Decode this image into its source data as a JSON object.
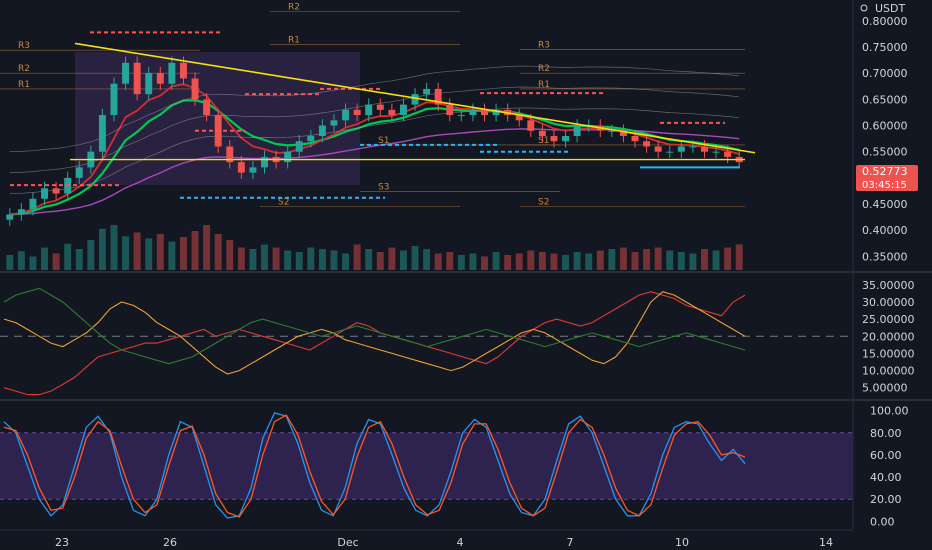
{
  "chart_data": [
    {
      "type": "candlestick",
      "pane": "price",
      "unit_label": "USDT",
      "y_ticks": [
        "0.80000",
        "0.75000",
        "0.70000",
        "0.65000",
        "0.60000",
        "0.55000",
        "0.50000",
        "0.45000",
        "0.40000",
        "0.35000"
      ],
      "ylim": [
        0.32,
        0.84
      ],
      "x_tick_labels": [
        "23",
        "26",
        "Dec",
        "4",
        "7",
        "10",
        "14"
      ],
      "current_price": "0.52773",
      "countdown": "03:45:15",
      "colors": {
        "up": "#26a69a",
        "down": "#ef5350",
        "trendline": "#f5e10b",
        "ema_fast": "#00c853",
        "ema_mid": "#d32f2f",
        "ma_slow": "#ab47bc",
        "support": "#29b6f6",
        "resistance": "#ff5252",
        "pivot": "#c8863a"
      },
      "pivot_labels": [
        "R2",
        "R1",
        "R3",
        "R2",
        "R1",
        "S1",
        "S2",
        "S3",
        "R3",
        "R2",
        "R1",
        "S1",
        "S2"
      ],
      "trendline": {
        "start": [
          0.0,
          0.757
        ],
        "end": [
          1.0,
          0.548
        ]
      },
      "horizontal_support": 0.535,
      "close": [
        0.43,
        0.44,
        0.46,
        0.48,
        0.47,
        0.5,
        0.52,
        0.55,
        0.62,
        0.68,
        0.72,
        0.66,
        0.7,
        0.68,
        0.72,
        0.69,
        0.65,
        0.62,
        0.56,
        0.53,
        0.51,
        0.52,
        0.54,
        0.53,
        0.55,
        0.57,
        0.58,
        0.6,
        0.61,
        0.63,
        0.62,
        0.64,
        0.63,
        0.62,
        0.64,
        0.66,
        0.67,
        0.64,
        0.62,
        0.62,
        0.63,
        0.62,
        0.63,
        0.62,
        0.61,
        0.59,
        0.58,
        0.57,
        0.58,
        0.6,
        0.6,
        0.59,
        0.59,
        0.58,
        0.57,
        0.56,
        0.55,
        0.55,
        0.56,
        0.56,
        0.55,
        0.55,
        0.54,
        0.53
      ]
    },
    {
      "type": "bar",
      "pane": "volume",
      "values": [
        20,
        25,
        18,
        30,
        22,
        35,
        28,
        40,
        55,
        60,
        45,
        50,
        42,
        48,
        38,
        44,
        52,
        60,
        48,
        40,
        30,
        28,
        34,
        30,
        26,
        24,
        30,
        28,
        26,
        22,
        34,
        28,
        24,
        30,
        26,
        32,
        28,
        22,
        24,
        20,
        22,
        18,
        24,
        20,
        22,
        26,
        24,
        22,
        20,
        24,
        22,
        26,
        28,
        30,
        24,
        28,
        30,
        26,
        24,
        22,
        28,
        26,
        30,
        34
      ]
    },
    {
      "type": "line",
      "pane": "adx",
      "y_ticks": [
        "35.00000",
        "30.00000",
        "25.00000",
        "20.00000",
        "15.00000",
        "10.00000",
        "5.00000"
      ],
      "ylim": [
        2,
        37
      ],
      "reference_level": 20,
      "series": [
        {
          "color": "#e53935",
          "values": [
            5,
            4,
            3,
            3,
            4,
            6,
            8,
            11,
            14,
            15,
            16,
            17,
            18,
            18,
            19,
            20,
            21,
            22,
            20,
            21,
            22,
            21,
            20,
            19,
            18,
            17,
            16,
            18,
            20,
            22,
            24,
            23,
            21,
            20,
            19,
            18,
            17,
            16,
            15,
            14,
            13,
            12,
            14,
            17,
            20,
            22,
            24,
            25,
            24,
            23,
            24,
            26,
            28,
            30,
            32,
            33,
            32,
            31,
            29,
            28,
            27,
            26,
            30,
            32
          ]
        },
        {
          "color": "#f0a030",
          "values": [
            25,
            24,
            22,
            20,
            18,
            17,
            19,
            21,
            24,
            28,
            30,
            29,
            27,
            24,
            22,
            20,
            17,
            14,
            11,
            9,
            10,
            12,
            14,
            16,
            18,
            20,
            21,
            22,
            21,
            19,
            18,
            17,
            16,
            15,
            14,
            13,
            12,
            11,
            10,
            11,
            13,
            15,
            17,
            19,
            21,
            22,
            21,
            19,
            17,
            15,
            13,
            12,
            14,
            18,
            24,
            30,
            33,
            32,
            30,
            28,
            26,
            24,
            22,
            20
          ]
        },
        {
          "color": "#2e7d32",
          "values": [
            30,
            32,
            33,
            34,
            32,
            30,
            27,
            24,
            21,
            18,
            16,
            15,
            14,
            13,
            12,
            13,
            14,
            16,
            18,
            20,
            22,
            24,
            25,
            24,
            23,
            22,
            21,
            20,
            21,
            22,
            23,
            22,
            21,
            20,
            19,
            18,
            17,
            18,
            19,
            20,
            21,
            22,
            21,
            20,
            19,
            18,
            17,
            18,
            19,
            20,
            21,
            20,
            19,
            18,
            17,
            18,
            19,
            20,
            21,
            20,
            19,
            18,
            17,
            16
          ]
        }
      ]
    },
    {
      "type": "line",
      "pane": "stochastic",
      "y_ticks": [
        "100.00",
        "80.00",
        "60.00",
        "40.00",
        "20.00",
        "0.00"
      ],
      "ylim": [
        -6,
        106
      ],
      "band": [
        20,
        80
      ],
      "series": [
        {
          "color": "#2196f3",
          "values": [
            90,
            80,
            50,
            20,
            5,
            15,
            50,
            85,
            95,
            80,
            40,
            10,
            5,
            20,
            60,
            90,
            85,
            50,
            15,
            3,
            5,
            30,
            75,
            98,
            95,
            70,
            35,
            10,
            5,
            30,
            70,
            92,
            88,
            60,
            30,
            10,
            5,
            15,
            45,
            80,
            92,
            85,
            55,
            25,
            8,
            5,
            20,
            55,
            88,
            95,
            80,
            50,
            20,
            5,
            5,
            25,
            60,
            85,
            90,
            88,
            70,
            55,
            65,
            52
          ]
        },
        {
          "color": "#ff5722",
          "values": [
            85,
            82,
            60,
            30,
            10,
            12,
            40,
            75,
            90,
            82,
            50,
            20,
            8,
            15,
            50,
            82,
            86,
            60,
            25,
            8,
            4,
            20,
            60,
            90,
            96,
            78,
            45,
            18,
            6,
            20,
            58,
            85,
            90,
            70,
            40,
            15,
            6,
            10,
            35,
            70,
            88,
            88,
            65,
            35,
            12,
            5,
            12,
            45,
            80,
            92,
            85,
            60,
            30,
            10,
            5,
            15,
            48,
            78,
            88,
            90,
            78,
            60,
            62,
            58
          ]
        }
      ]
    }
  ]
}
